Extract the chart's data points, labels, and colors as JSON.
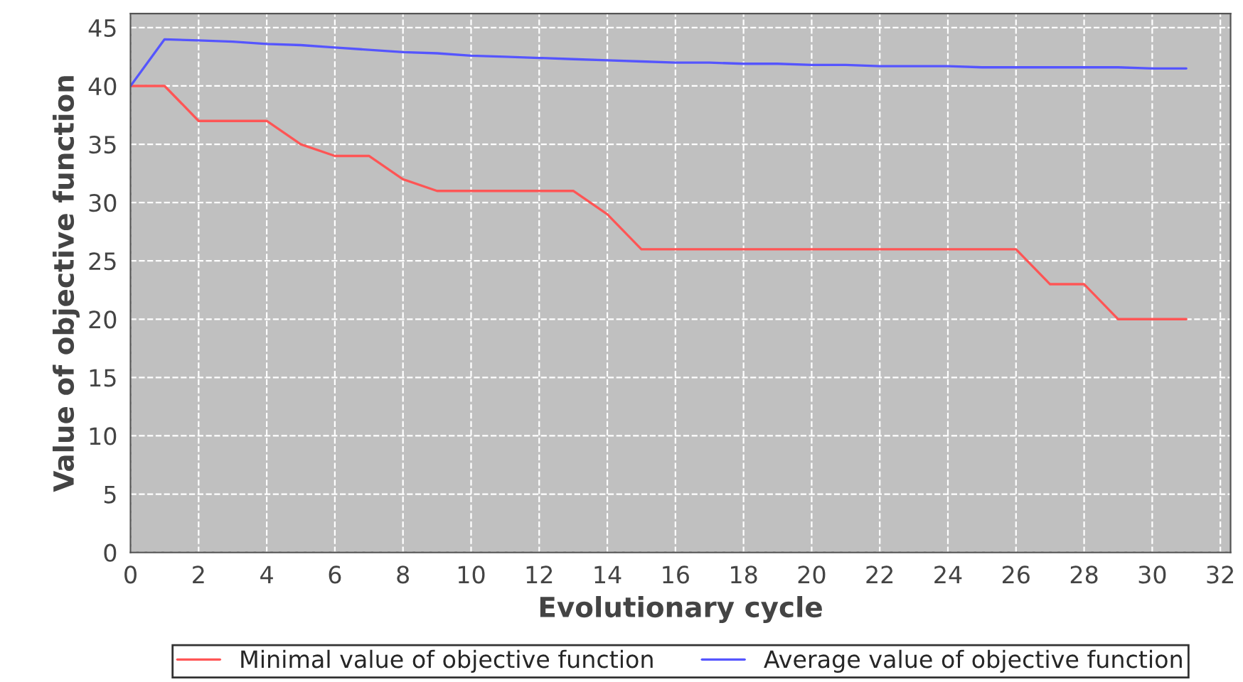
{
  "chart_data": {
    "type": "line",
    "xlabel": "Evolutionary cycle",
    "ylabel": "Value of objective function",
    "x": [
      0,
      1,
      2,
      3,
      4,
      5,
      6,
      7,
      8,
      9,
      10,
      11,
      12,
      13,
      14,
      15,
      16,
      17,
      18,
      19,
      20,
      21,
      22,
      23,
      24,
      25,
      26,
      27,
      28,
      29,
      30,
      31
    ],
    "series": [
      {
        "name": "Minimal value of objective function",
        "color": "#ff5555",
        "values": [
          40,
          40,
          37,
          37,
          37,
          35,
          34,
          34,
          32,
          31,
          31,
          31,
          31,
          31,
          29,
          26,
          26,
          26,
          26,
          26,
          26,
          26,
          26,
          26,
          26,
          26,
          26,
          23,
          23,
          20,
          20,
          20
        ]
      },
      {
        "name": "Average value of objective function",
        "color": "#5555ff",
        "values": [
          40,
          44,
          43.9,
          43.8,
          43.6,
          43.5,
          43.3,
          43.1,
          42.9,
          42.8,
          42.6,
          42.5,
          42.4,
          42.3,
          42.2,
          42.1,
          42.0,
          42.0,
          41.9,
          41.9,
          41.8,
          41.8,
          41.7,
          41.7,
          41.7,
          41.6,
          41.6,
          41.6,
          41.6,
          41.6,
          41.5,
          41.5
        ]
      }
    ],
    "xlim": [
      0,
      32.3
    ],
    "xticks": [
      0,
      2,
      4,
      6,
      8,
      10,
      12,
      14,
      16,
      18,
      20,
      22,
      24,
      26,
      28,
      30,
      32
    ],
    "ylim": [
      0,
      46.2
    ],
    "yticks": [
      0,
      5,
      10,
      15,
      20,
      25,
      30,
      35,
      40,
      45
    ],
    "grid": true,
    "legend": "bottom",
    "marker": "none",
    "line_style": "solid"
  }
}
